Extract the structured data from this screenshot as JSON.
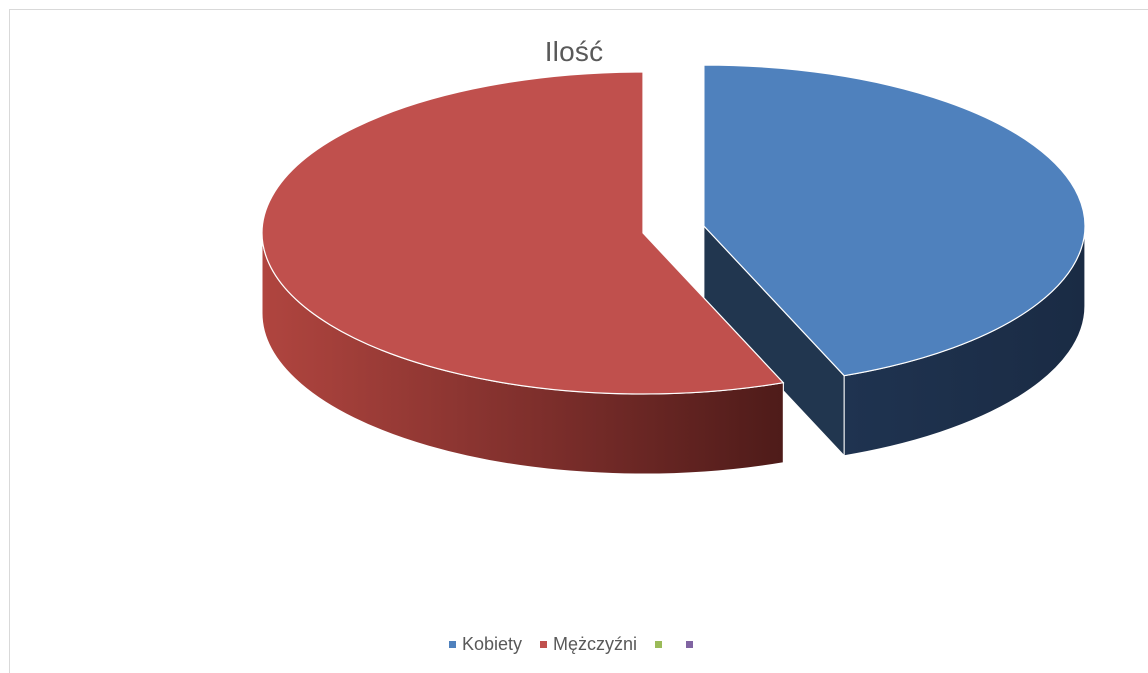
{
  "chart_data": {
    "type": "pie",
    "title": "Ilość",
    "categories": [
      "Kobiety",
      "Mężczyźni",
      "",
      ""
    ],
    "values": [
      44,
      56,
      0,
      0
    ],
    "colors": [
      "#4f81bd",
      "#c0504d",
      "#9bbb59",
      "#8064a2"
    ],
    "exploded": "Kobiety",
    "style": "3d",
    "legend_position": "bottom"
  }
}
